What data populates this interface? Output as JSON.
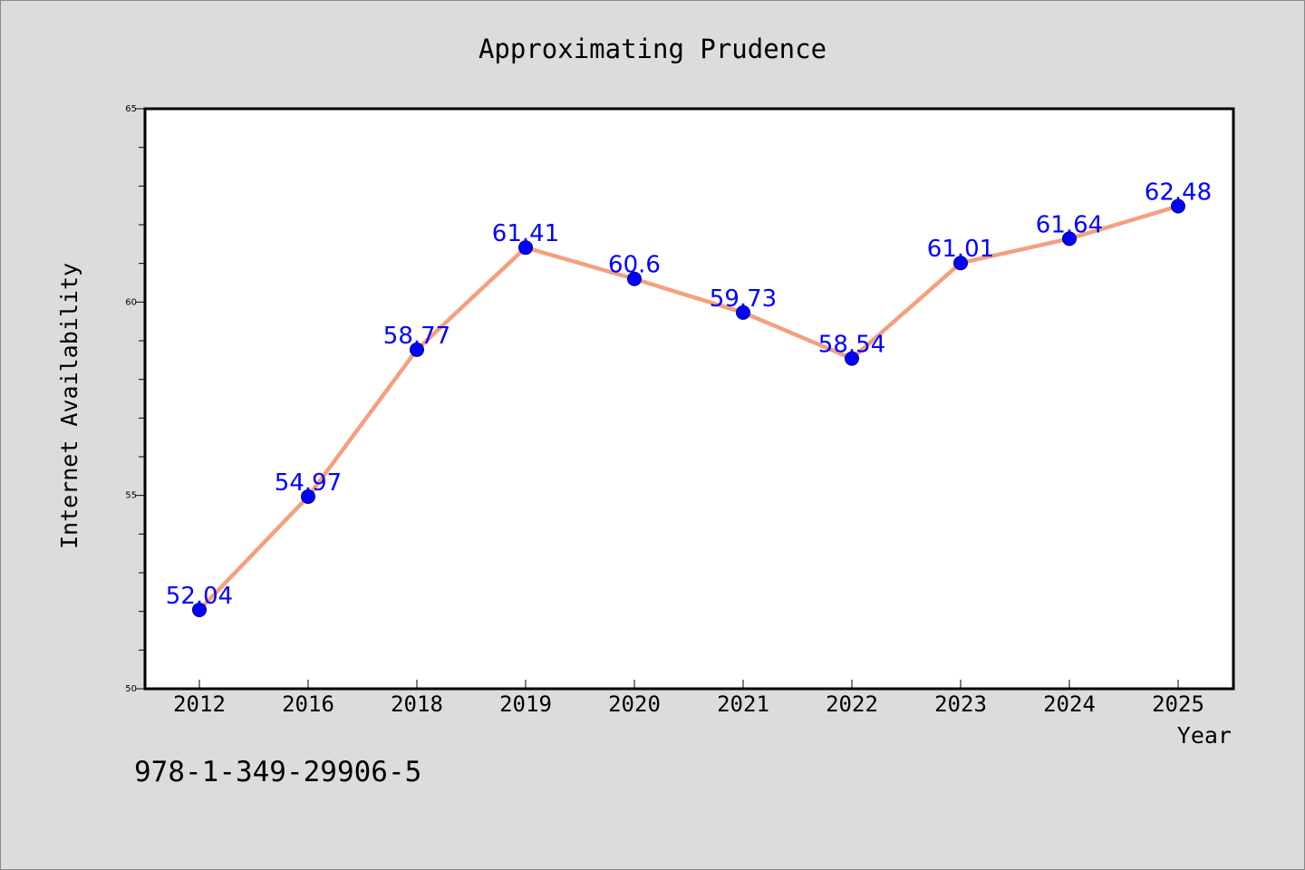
{
  "chart_data": {
    "type": "line",
    "title": "Approximating Prudence",
    "xlabel": "Year",
    "ylabel": "Internet Availability",
    "categories": [
      "2012",
      "2016",
      "2018",
      "2019",
      "2020",
      "2021",
      "2022",
      "2023",
      "2024",
      "2025"
    ],
    "series": [
      {
        "values": [
          52.04,
          54.97,
          58.77,
          61.41,
          60.6,
          59.73,
          58.54,
          61.01,
          61.64,
          62.48
        ]
      }
    ],
    "data_labels": [
      "52.04",
      "54.97",
      "58.77",
      "61.41",
      "60.6",
      "59.73",
      "58.54",
      "61.01",
      "61.64",
      "62.48"
    ],
    "ylim": [
      50,
      65
    ],
    "y_ticks": [
      "50",
      "55",
      "60",
      "65"
    ],
    "grid": false,
    "line_color": "#f4a07e",
    "marker_color": "#0000ff",
    "label_color": "#0000ff"
  },
  "footnote": "978-1-349-29906-5"
}
